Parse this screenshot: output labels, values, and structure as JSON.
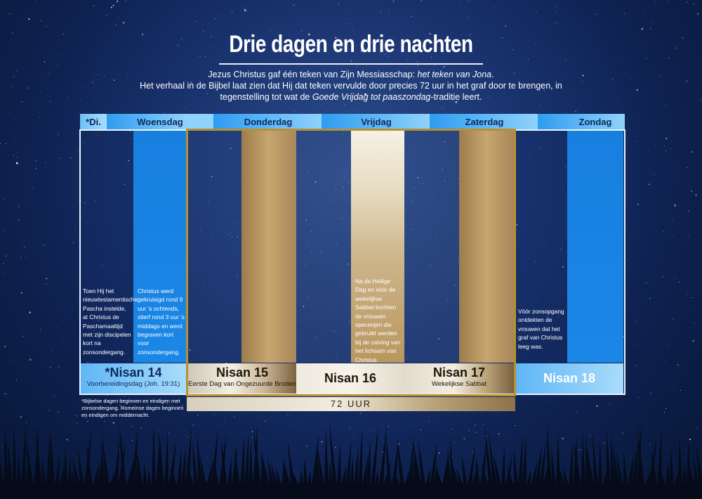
{
  "title": "Drie dagen en drie nachten",
  "intro": {
    "line1_prefix": "Jezus Christus gaf één teken van Zijn Messiasschap: ",
    "line1_italic": "het teken van Jona",
    "line1_suffix": ".",
    "line2": "Het verhaal in de Bijbel laat zien dat Hij dat teken vervulde door precies 72 uur in het graf door te brengen, in",
    "line3_prefix": "tegenstelling tot wat de ",
    "line3_italic": "Goede Vrijdag tot paaszondag",
    "line3_suffix": "-traditie leert."
  },
  "days": {
    "di": "*Di.",
    "woensdag": "Woensdag",
    "donderdag": "Donderdag",
    "vrijdag": "Vrijdag",
    "zaterdag": "Zaterdag",
    "zondag": "Zondag"
  },
  "descriptions": {
    "dinsdag": "Toen Hij het nieuwtestamentische Pascha instelde, at Christus de Paschamaaltijd met zijn discipelen kort na zonsondergang.",
    "woensdag": "Christus werd gekruisigd rond 9 uur ’s ochtends, stierf rond 3 uur ’s middags en werd begraven kort voor zonsondergang.",
    "vrijdag": "Na de Heilige Dag en vóór de wekelijkse Sabbat kochten de vrouwen specerijen die gebruikt werden bij de zalving van het lichaam van Christus.",
    "zondag": "Vóór zonsopgang ontdekten de vrouwen dat het graf van Christus leeg was."
  },
  "nisan": {
    "n14": {
      "title": "*Nisan 14",
      "sub": "Voorbereidingsdag (Joh. 19:31)"
    },
    "n15": {
      "title": "Nisan 15",
      "sub": "Eerste Dag van Ongezuurde Broden"
    },
    "n16": {
      "title": "Nisan 16",
      "sub": ""
    },
    "n17": {
      "title": "Nisan 17",
      "sub": "Wekelijkse Sabbat"
    },
    "n18": {
      "title": "Nisan 18",
      "sub": ""
    }
  },
  "hours_label": "72 UUR",
  "footnote": "*Bijbelse dagen beginnen en eindigen met zonsondergang. Romeinse dagen beginnen en eindigen om middernacht.",
  "colors": {
    "day_blue": "#1781e0",
    "header_blue": "#2e9cf0",
    "gold": "#c9a25a",
    "frame_gold": "#b8902f",
    "text_dark": "#0d2a5c"
  }
}
